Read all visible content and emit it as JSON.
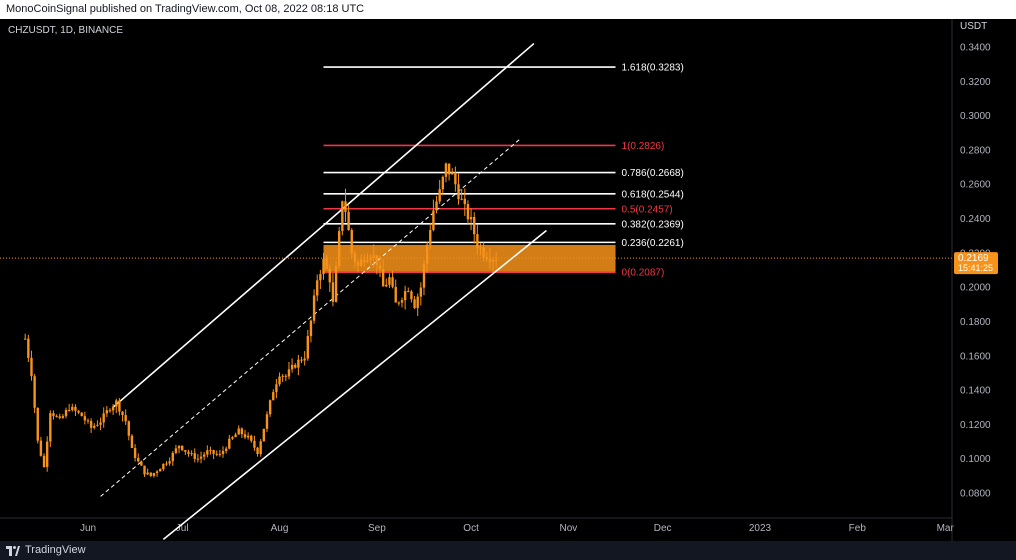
{
  "header": {
    "publisher_line": "MonoCoinSignal published on TradingView.com, Oct 08, 2022 08:18 UTC"
  },
  "footer": {
    "brand": "TradingView",
    "logo_icon": "tradingview-logo-icon"
  },
  "chart_data": {
    "type": "candlestick",
    "symbol_label": "CHZUSDT, 1D, BINANCE",
    "currency_label": "USDT",
    "ylim": [
      0.07,
      0.35
    ],
    "y_ticks": [
      "0.3400",
      "0.3200",
      "0.3000",
      "0.2800",
      "0.2600",
      "0.2400",
      "0.2200",
      "0.2000",
      "0.1800",
      "0.1600",
      "0.1400",
      "0.1200",
      "0.1000",
      "0.0800"
    ],
    "x_ticks": [
      {
        "label": "Jun",
        "day": 152
      },
      {
        "label": "Jul",
        "day": 182
      },
      {
        "label": "Aug",
        "day": 213
      },
      {
        "label": "Sep",
        "day": 244
      },
      {
        "label": "Oct",
        "day": 274
      },
      {
        "label": "Nov",
        "day": 305
      },
      {
        "label": "Dec",
        "day": 335
      },
      {
        "label": "2023",
        "day": 366
      },
      {
        "label": "Feb",
        "day": 397
      },
      {
        "label": "Mar",
        "day": 425
      }
    ],
    "price_series": [
      {
        "day": 132,
        "v": 0.17
      },
      {
        "day": 134,
        "v": 0.15
      },
      {
        "day": 136,
        "v": 0.11
      },
      {
        "day": 138,
        "v": 0.095
      },
      {
        "day": 140,
        "v": 0.128
      },
      {
        "day": 143,
        "v": 0.122
      },
      {
        "day": 146,
        "v": 0.13
      },
      {
        "day": 150,
        "v": 0.125
      },
      {
        "day": 153,
        "v": 0.118
      },
      {
        "day": 156,
        "v": 0.122
      },
      {
        "day": 159,
        "v": 0.13
      },
      {
        "day": 161,
        "v": 0.133
      },
      {
        "day": 164,
        "v": 0.122
      },
      {
        "day": 166,
        "v": 0.105
      },
      {
        "day": 168,
        "v": 0.098
      },
      {
        "day": 170,
        "v": 0.092
      },
      {
        "day": 172,
        "v": 0.09
      },
      {
        "day": 175,
        "v": 0.095
      },
      {
        "day": 178,
        "v": 0.1
      },
      {
        "day": 181,
        "v": 0.108
      },
      {
        "day": 184,
        "v": 0.103
      },
      {
        "day": 187,
        "v": 0.1
      },
      {
        "day": 190,
        "v": 0.104
      },
      {
        "day": 194,
        "v": 0.102
      },
      {
        "day": 197,
        "v": 0.11
      },
      {
        "day": 200,
        "v": 0.116
      },
      {
        "day": 203,
        "v": 0.112
      },
      {
        "day": 206,
        "v": 0.104
      },
      {
        "day": 209,
        "v": 0.125
      },
      {
        "day": 211,
        "v": 0.14
      },
      {
        "day": 213,
        "v": 0.15
      },
      {
        "day": 215,
        "v": 0.148
      },
      {
        "day": 218,
        "v": 0.155
      },
      {
        "day": 221,
        "v": 0.16
      },
      {
        "day": 223,
        "v": 0.18
      },
      {
        "day": 225,
        "v": 0.205
      },
      {
        "day": 227,
        "v": 0.215
      },
      {
        "day": 229,
        "v": 0.205
      },
      {
        "day": 230,
        "v": 0.19
      },
      {
        "day": 232,
        "v": 0.23
      },
      {
        "day": 233,
        "v": 0.252
      },
      {
        "day": 234,
        "v": 0.245
      },
      {
        "day": 236,
        "v": 0.22
      },
      {
        "day": 238,
        "v": 0.212
      },
      {
        "day": 240,
        "v": 0.218
      },
      {
        "day": 242,
        "v": 0.22
      },
      {
        "day": 244,
        "v": 0.215
      },
      {
        "day": 246,
        "v": 0.2
      },
      {
        "day": 248,
        "v": 0.205
      },
      {
        "day": 250,
        "v": 0.19
      },
      {
        "day": 252,
        "v": 0.195
      },
      {
        "day": 254,
        "v": 0.2
      },
      {
        "day": 256,
        "v": 0.19
      },
      {
        "day": 258,
        "v": 0.2
      },
      {
        "day": 260,
        "v": 0.225
      },
      {
        "day": 262,
        "v": 0.245
      },
      {
        "day": 264,
        "v": 0.255
      },
      {
        "day": 266,
        "v": 0.27
      },
      {
        "day": 268,
        "v": 0.265
      },
      {
        "day": 270,
        "v": 0.255
      },
      {
        "day": 272,
        "v": 0.245
      },
      {
        "day": 274,
        "v": 0.238
      },
      {
        "day": 276,
        "v": 0.225
      },
      {
        "day": 278,
        "v": 0.22
      },
      {
        "day": 280,
        "v": 0.218
      },
      {
        "day": 282,
        "v": 0.217
      }
    ],
    "last_price": {
      "label": "0.2169",
      "countdown": "15:41:25",
      "value": 0.2169
    },
    "fib_levels": [
      {
        "label": "1.618(0.3283)",
        "value": 0.3283,
        "color": "#ffffff"
      },
      {
        "label": "1(0.2826)",
        "value": 0.2826,
        "color": "#f23645"
      },
      {
        "label": "0.786(0.2668)",
        "value": 0.2668,
        "color": "#ffffff"
      },
      {
        "label": "0.618(0.2544)",
        "value": 0.2544,
        "color": "#ffffff"
      },
      {
        "label": "0.5(0.2457)",
        "value": 0.2457,
        "color": "#f23645"
      },
      {
        "label": "0.382(0.2369)",
        "value": 0.2369,
        "color": "#ffffff"
      },
      {
        "label": "0.236(0.2261)",
        "value": 0.2261,
        "color": "#ffffff"
      },
      {
        "label": "0(0.2087)",
        "value": 0.2087,
        "color": "#f23645"
      }
    ],
    "fib_range": {
      "day_start": 227,
      "day_end": 320
    },
    "zone": {
      "top": 0.2246,
      "bottom": 0.2087,
      "color": "#f7931a"
    },
    "channel": {
      "upper": [
        {
          "day": 160,
          "v": 0.13
        },
        {
          "day": 294,
          "v": 0.342
        }
      ],
      "mid": [
        {
          "day": 156,
          "v": 0.078
        },
        {
          "day": 290,
          "v": 0.287
        }
      ],
      "lower": [
        {
          "day": 176,
          "v": 0.053
        },
        {
          "day": 298,
          "v": 0.233
        }
      ]
    },
    "candle_color": "#f7931a",
    "grid": false
  }
}
